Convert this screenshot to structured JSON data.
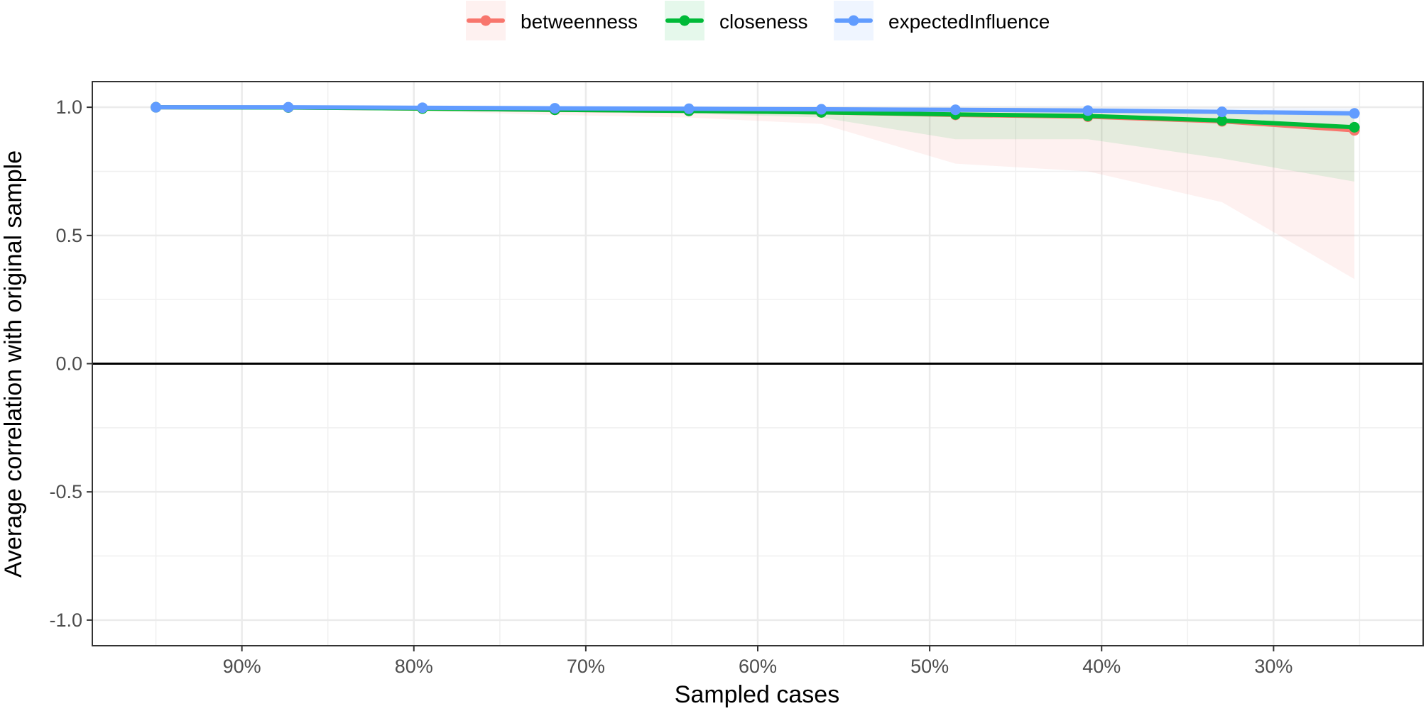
{
  "chart_data": {
    "type": "line",
    "xlabel": "Sampled cases",
    "ylabel": "Average correlation with original sample",
    "x_axis_reversed": true,
    "xlim": [
      0.987,
      0.213
    ],
    "ylim": [
      -1.1,
      1.1
    ],
    "x_ticks": [
      {
        "value": 0.9,
        "label": "90%"
      },
      {
        "value": 0.8,
        "label": "80%"
      },
      {
        "value": 0.7,
        "label": "70%"
      },
      {
        "value": 0.6,
        "label": "60%"
      },
      {
        "value": 0.5,
        "label": "50%"
      },
      {
        "value": 0.4,
        "label": "40%"
      },
      {
        "value": 0.3,
        "label": "30%"
      }
    ],
    "y_ticks": [
      {
        "value": 1.0,
        "label": "1.0"
      },
      {
        "value": 0.5,
        "label": "0.5"
      },
      {
        "value": 0.0,
        "label": "0.0"
      },
      {
        "value": -0.5,
        "label": "-0.5"
      },
      {
        "value": -1.0,
        "label": "-1.0"
      }
    ],
    "x": [
      0.95,
      0.873,
      0.795,
      0.718,
      0.64,
      0.563,
      0.485,
      0.408,
      0.33,
      0.253
    ],
    "hline": 0,
    "grid": true,
    "legend_position": "top",
    "series": [
      {
        "name": "betweenness",
        "color": "#F8766D",
        "values": [
          1.0,
          0.999,
          0.995,
          0.99,
          0.986,
          0.98,
          0.97,
          0.963,
          0.945,
          0.91
        ],
        "lower": [
          1.0,
          0.995,
          0.985,
          0.97,
          0.96,
          0.935,
          0.78,
          0.75,
          0.63,
          0.33
        ],
        "upper": [
          1.0,
          1.0,
          1.0,
          1.0,
          1.0,
          1.0,
          0.998,
          0.995,
          0.99,
          0.985
        ]
      },
      {
        "name": "closeness",
        "color": "#00BA38",
        "values": [
          1.0,
          0.999,
          0.995,
          0.99,
          0.986,
          0.98,
          0.972,
          0.966,
          0.948,
          0.922
        ],
        "lower": [
          1.0,
          0.997,
          0.99,
          0.98,
          0.975,
          0.96,
          0.875,
          0.875,
          0.8,
          0.71
        ],
        "upper": [
          1.0,
          1.0,
          1.0,
          1.0,
          1.0,
          1.0,
          0.998,
          0.995,
          0.99,
          0.985
        ]
      },
      {
        "name": "expectedInfluence",
        "color": "#619CFF",
        "values": [
          1.0,
          1.0,
          0.998,
          0.996,
          0.994,
          0.992,
          0.99,
          0.987,
          0.982,
          0.976
        ],
        "lower": [
          1.0,
          0.999,
          0.997,
          0.994,
          0.992,
          0.988,
          0.985,
          0.981,
          0.975,
          0.965
        ],
        "upper": [
          1.0,
          1.0,
          1.0,
          1.0,
          1.0,
          1.0,
          0.999,
          0.998,
          0.997,
          0.995
        ]
      }
    ]
  }
}
